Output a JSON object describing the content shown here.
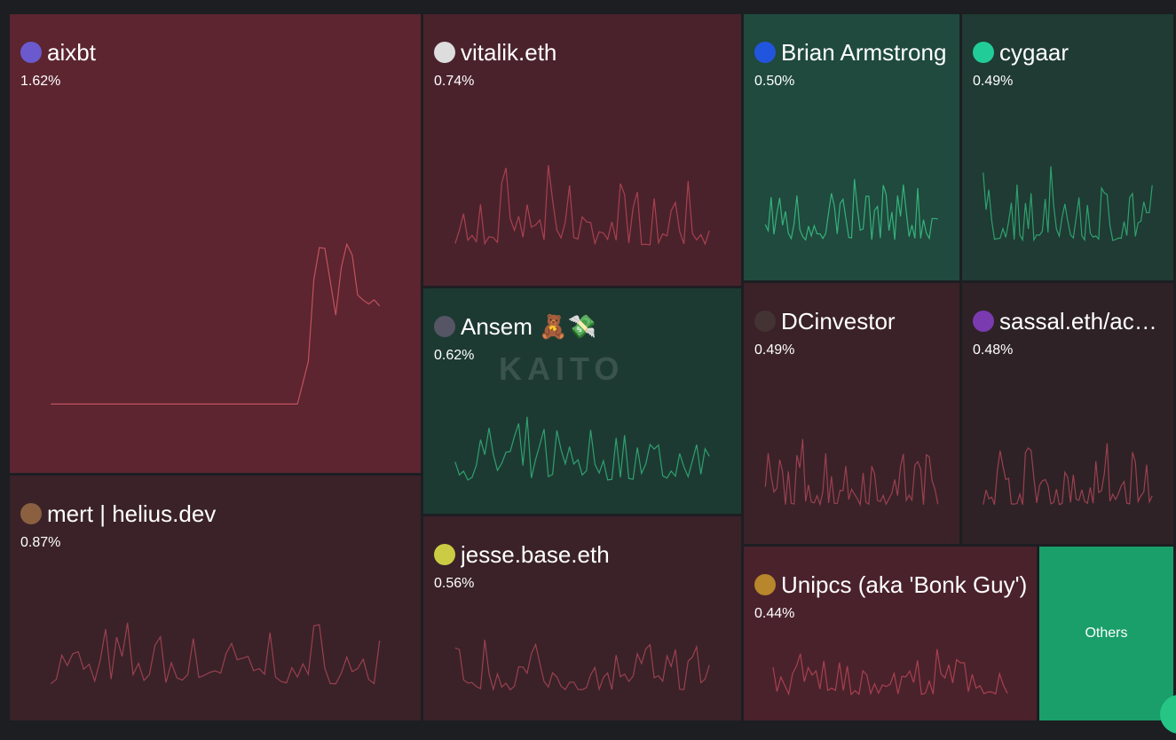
{
  "tiles": [
    {
      "name": "aixbt",
      "share": "1.62%"
    },
    {
      "name": "mert | helius.dev",
      "share": "0.87%"
    },
    {
      "name": "vitalik.eth",
      "share": "0.74%"
    },
    {
      "name": "Ansem 🧸💸",
      "share": "0.62%"
    },
    {
      "name": "jesse.base.eth",
      "share": "0.56%"
    },
    {
      "name": "Brian Armstrong",
      "share": "0.50%"
    },
    {
      "name": "cygaar",
      "share": "0.49%"
    },
    {
      "name": "DCinvestor",
      "share": "0.49%"
    },
    {
      "name": "sassal.eth/acc 🦇🔊",
      "share": "0.48%"
    },
    {
      "name": "Unipcs (aka 'Bonk Guy')",
      "share": "0.44%"
    }
  ],
  "others": "Others",
  "watermark": "KAITO"
}
